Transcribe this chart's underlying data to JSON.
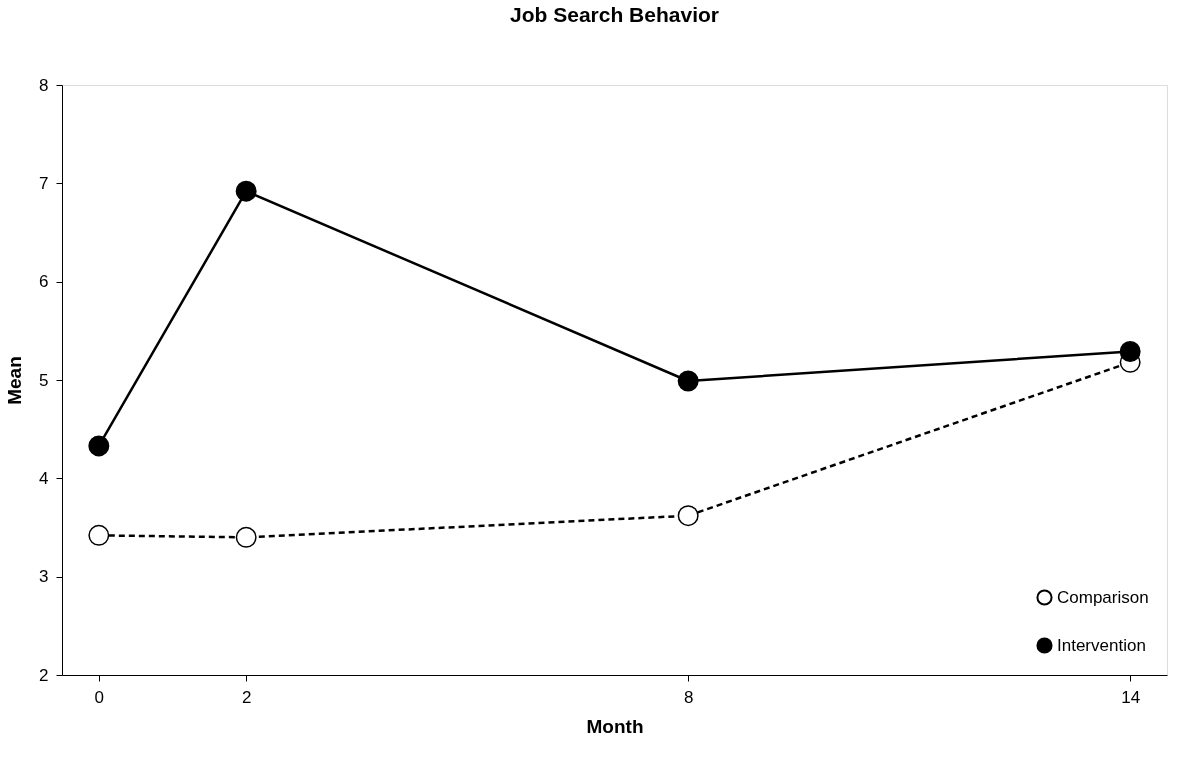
{
  "chart_data": {
    "type": "line",
    "title": "Job Search Behavior",
    "xlabel": "Month",
    "ylabel": "Mean",
    "x": [
      0,
      2,
      8,
      14
    ],
    "xlim": [
      -0.5,
      14.5
    ],
    "xticks": [
      0,
      2,
      8,
      14
    ],
    "ylim": [
      2,
      8
    ],
    "yticks": [
      2,
      3,
      4,
      5,
      6,
      7,
      8
    ],
    "grid": false,
    "legend": "bottom right",
    "marker": "circle",
    "series": [
      {
        "name": "Comparison",
        "color": "#000000",
        "line_style": "dashed",
        "values": [
          3.42,
          3.4,
          3.62,
          5.18
        ]
      },
      {
        "name": "Intervention",
        "color": "#000000",
        "line_style": "solid",
        "values": [
          4.33,
          6.92,
          4.99,
          5.29
        ]
      }
    ]
  }
}
